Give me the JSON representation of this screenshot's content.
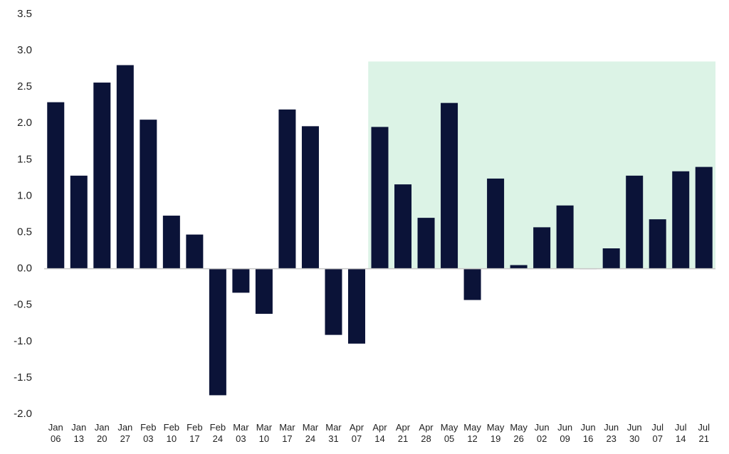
{
  "chart_data": {
    "type": "bar",
    "categories": [
      "Jan 06",
      "Jan 13",
      "Jan 20",
      "Jan 27",
      "Feb 03",
      "Feb 10",
      "Feb 17",
      "Feb 24",
      "Mar 03",
      "Mar 10",
      "Mar 17",
      "Mar 24",
      "Mar 31",
      "Apr 07",
      "Apr 14",
      "Apr 21",
      "Apr 28",
      "May 05",
      "May 12",
      "May 19",
      "May 26",
      "Jun 02",
      "Jun 09",
      "Jun 16",
      "Jun 23",
      "Jun 30",
      "Jul 07",
      "Jul 14",
      "Jul 21"
    ],
    "values": [
      2.29,
      1.28,
      2.56,
      2.8,
      2.05,
      0.73,
      0.47,
      -1.74,
      -0.33,
      -0.62,
      2.19,
      1.96,
      -0.91,
      -1.03,
      1.95,
      1.16,
      0.7,
      2.28,
      -0.43,
      1.24,
      0.05,
      0.57,
      0.87,
      0.0,
      0.28,
      1.28,
      0.68,
      1.34,
      1.4
    ],
    "color": "#0b1338",
    "ylim": [
      -2.0,
      3.5
    ],
    "yticks": [
      {
        "value": -2.0,
        "label": "-2.0"
      },
      -1.5,
      {
        "value": -1.0,
        "label": "-1.0"
      },
      -0.5,
      {
        "value": 0.0,
        "label": "0.0"
      },
      0.5,
      {
        "value": 1.0,
        "label": "1.0"
      },
      1.5,
      {
        "value": 2.0,
        "label": "2.0"
      },
      2.5,
      {
        "value": 3.0,
        "label": "3.0"
      },
      3.5
    ],
    "grid": false,
    "highlight": {
      "x": [
        "Apr 14",
        "Jul 21"
      ],
      "y": [
        0,
        2.85
      ],
      "color": "#dcf3e6"
    }
  }
}
